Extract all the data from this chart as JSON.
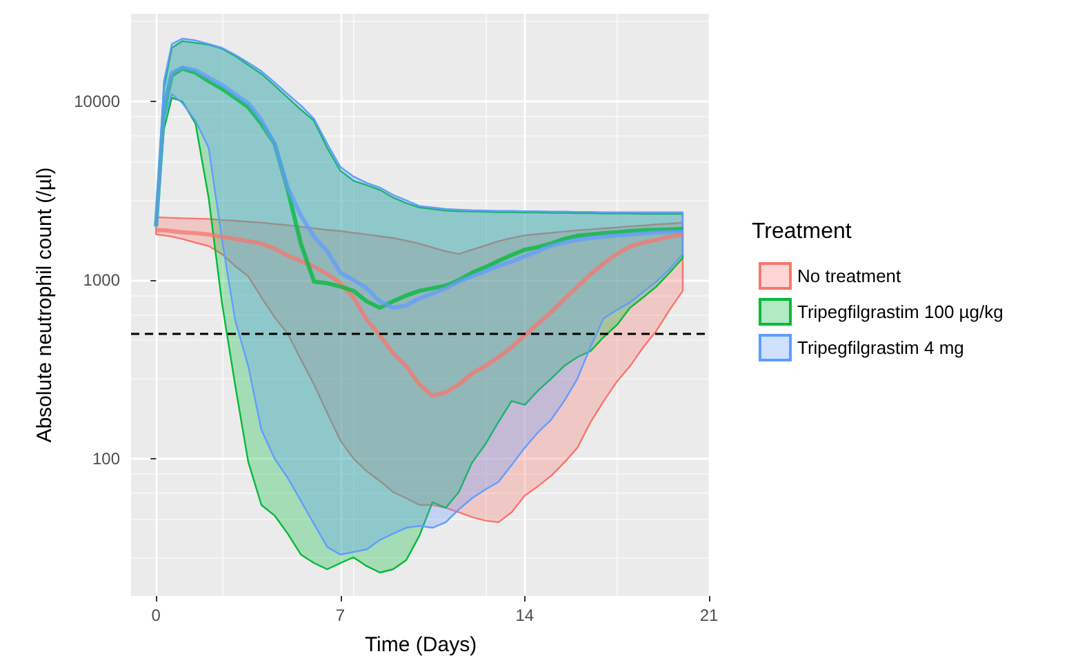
{
  "chart_data": {
    "type": "line",
    "xlabel": "Time (Days)",
    "ylabel": "Absolute neutrophil count (/µl)",
    "legend_title": "Treatment",
    "legend": "right",
    "grid": true,
    "log": "y",
    "marker": "none",
    "line_style": "solid",
    "xlim": [
      -0.95,
      21.05
    ],
    "xticks": [
      0,
      7,
      14,
      21
    ],
    "ylim": [
      17,
      31000
    ],
    "yticks": [
      100,
      1000,
      10000
    ],
    "x": [
      0,
      0.3,
      0.6,
      1,
      1.5,
      2,
      2.5,
      3,
      3.5,
      4,
      4.5,
      5,
      5.5,
      6,
      6.5,
      7,
      7.5,
      8,
      8.5,
      9,
      9.5,
      10,
      10.5,
      11,
      11.5,
      12,
      12.5,
      13,
      13.5,
      14,
      14.5,
      15,
      15.5,
      16,
      16.5,
      17,
      17.5,
      18,
      18.5,
      19,
      19.5,
      20
    ],
    "ref_lines": [
      {
        "axis": "y",
        "value": 500,
        "color": "#000000",
        "line_style": "dashed"
      }
    ],
    "series": [
      {
        "name": "No treatment",
        "color": "#f8766d",
        "values": [
          1900,
          1900,
          1880,
          1850,
          1830,
          1800,
          1750,
          1700,
          1650,
          1600,
          1500,
          1370,
          1280,
          1190,
          1080,
          960,
          800,
          600,
          490,
          390,
          330,
          260,
          225,
          235,
          260,
          300,
          330,
          370,
          420,
          490,
          570,
          660,
          780,
          920,
          1080,
          1240,
          1400,
          1540,
          1620,
          1680,
          1750,
          1800
        ],
        "lower": [
          1800,
          1780,
          1750,
          1700,
          1620,
          1550,
          1400,
          1200,
          1050,
          800,
          620,
          500,
          360,
          260,
          180,
          126,
          100,
          85,
          75,
          65,
          60,
          55,
          55,
          53,
          50,
          47,
          45,
          44,
          50,
          62,
          70,
          80,
          95,
          115,
          160,
          210,
          270,
          330,
          420,
          520,
          680,
          870
        ],
        "upper": [
          2250,
          2240,
          2230,
          2220,
          2210,
          2200,
          2170,
          2150,
          2120,
          2100,
          2060,
          2030,
          1990,
          1950,
          1910,
          1880,
          1840,
          1800,
          1760,
          1720,
          1660,
          1600,
          1520,
          1450,
          1400,
          1480,
          1560,
          1650,
          1720,
          1780,
          1810,
          1840,
          1870,
          1900,
          1920,
          1950,
          1970,
          2000,
          2020,
          2050,
          2070,
          2100
        ]
      },
      {
        "name": "Tripegfilgrastim 100 µg/kg",
        "color": "#00ba38",
        "values": [
          2000,
          9000,
          14000,
          15300,
          14500,
          13000,
          11800,
          10500,
          9300,
          7500,
          5800,
          3200,
          1600,
          980,
          960,
          920,
          870,
          760,
          700,
          760,
          820,
          870,
          900,
          930,
          1000,
          1100,
          1180,
          1280,
          1380,
          1480,
          1530,
          1600,
          1700,
          1770,
          1800,
          1830,
          1850,
          1880,
          1900,
          1910,
          1920,
          1930
        ],
        "lower": [
          2000,
          7000,
          10500,
          10000,
          7500,
          2870,
          750,
          260,
          96,
          55,
          48,
          38,
          29,
          26,
          24,
          26,
          28,
          25,
          23,
          24,
          27,
          37,
          57,
          53,
          65,
          95,
          120,
          160,
          210,
          200,
          240,
          280,
          330,
          370,
          400,
          480,
          560,
          700,
          800,
          920,
          1100,
          1330
        ],
        "upper": [
          2000,
          12000,
          20000,
          21800,
          21300,
          20800,
          19800,
          18000,
          16000,
          14300,
          12300,
          10500,
          9000,
          7800,
          5500,
          4100,
          3600,
          3400,
          3200,
          2900,
          2700,
          2550,
          2500,
          2450,
          2430,
          2420,
          2410,
          2400,
          2400,
          2390,
          2390,
          2380,
          2380,
          2370,
          2370,
          2360,
          2360,
          2360,
          2350,
          2350,
          2350,
          2350
        ]
      },
      {
        "name": "Tripegfilgrastim 4 mg",
        "color": "#619cff",
        "values": [
          2000,
          9500,
          14500,
          15500,
          15000,
          13600,
          12400,
          11000,
          9800,
          7900,
          5800,
          3300,
          2300,
          1750,
          1450,
          1100,
          1000,
          900,
          760,
          700,
          720,
          790,
          840,
          900,
          980,
          1050,
          1120,
          1200,
          1270,
          1360,
          1450,
          1560,
          1620,
          1680,
          1720,
          1750,
          1780,
          1800,
          1830,
          1850,
          1860,
          1870
        ],
        "lower": [
          2000,
          8000,
          11000,
          9800,
          7800,
          5500,
          1700,
          600,
          330,
          145,
          100,
          78,
          58,
          43,
          32,
          29,
          30,
          31,
          35,
          38,
          41,
          42,
          41,
          44,
          52,
          60,
          67,
          74,
          92,
          115,
          140,
          165,
          210,
          280,
          424,
          610,
          680,
          750,
          860,
          980,
          1150,
          1400
        ],
        "upper": [
          2000,
          13000,
          21000,
          22500,
          22000,
          21000,
          20000,
          18300,
          16500,
          14800,
          12800,
          11000,
          9500,
          8000,
          5800,
          4300,
          3800,
          3500,
          3300,
          3000,
          2800,
          2600,
          2550,
          2500,
          2480,
          2460,
          2450,
          2440,
          2440,
          2430,
          2430,
          2420,
          2420,
          2410,
          2410,
          2400,
          2400,
          2400,
          2400,
          2400,
          2400,
          2400
        ]
      }
    ]
  }
}
